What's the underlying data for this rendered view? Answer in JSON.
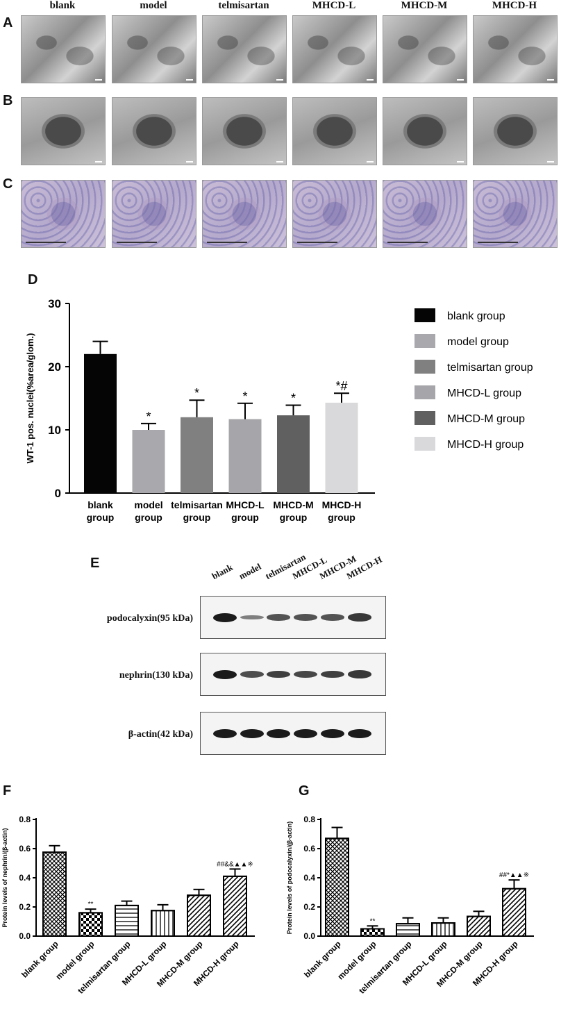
{
  "columns": [
    "blank",
    "model",
    "telmisartan",
    "MHCD-L",
    "MHCD-M",
    "MHCD-H"
  ],
  "panels": {
    "A": "A",
    "B": "B",
    "C": "C",
    "D": "D",
    "E": "E",
    "F": "F",
    "G": "G"
  },
  "chart_d": {
    "type": "bar",
    "ylabel": "WT-1 pos. nuclei(%area/glom.)",
    "ylim": [
      0,
      30
    ],
    "yticks": [
      0,
      10,
      20,
      30
    ],
    "categories": [
      [
        "blank",
        "group"
      ],
      [
        "model",
        "group"
      ],
      [
        "telmisartan",
        "group"
      ],
      [
        "MHCD-L",
        "group"
      ],
      [
        "MHCD-M",
        "group"
      ],
      [
        "MHCD-H",
        "group"
      ]
    ],
    "values": [
      22.0,
      10.0,
      12.0,
      11.7,
      12.3,
      14.3
    ],
    "errors": [
      2.0,
      1.0,
      2.7,
      2.5,
      1.6,
      1.5
    ],
    "annotations": [
      "",
      "*",
      "*",
      "*",
      "*",
      "*#"
    ],
    "colors": [
      "#050505",
      "#a9a9ad",
      "#808080",
      "#a6a6aa",
      "#606060",
      "#d9d9db"
    ],
    "legend": [
      "blank group",
      "model group",
      "telmisartan group",
      "MHCD-L group",
      "MHCD-M group",
      "MHCD-H group"
    ]
  },
  "blot": {
    "lanes": [
      "blank",
      "model",
      "telmisartan",
      "MHCD-L",
      "MHCD-M",
      "MHCD-H"
    ],
    "rows": [
      {
        "label": "podocalyxin(95 kDa)",
        "intensity": [
          1.0,
          0.3,
          0.6,
          0.6,
          0.6,
          0.8
        ]
      },
      {
        "label": "nephrin(130 kDa)",
        "intensity": [
          1.0,
          0.65,
          0.75,
          0.7,
          0.75,
          0.8
        ]
      },
      {
        "label": "β-actin(42 kDa)",
        "intensity": [
          1.0,
          1.0,
          1.0,
          1.0,
          1.0,
          1.0
        ]
      }
    ]
  },
  "chart_f": {
    "type": "bar",
    "ylabel": "Protein levels of nephrin/(β-actin)",
    "ylim": [
      0,
      0.8
    ],
    "yticks": [
      "0.0",
      "0.2",
      "0.4",
      "0.6",
      "0.8"
    ],
    "categories": [
      "blank group",
      "model group",
      "telmisartan group",
      "MHCD-L group",
      "MHCD-M group",
      "MHCD-H group"
    ],
    "values": [
      0.575,
      0.16,
      0.21,
      0.175,
      0.28,
      0.41
    ],
    "errors": [
      0.045,
      0.025,
      0.03,
      0.04,
      0.04,
      0.05
    ],
    "annotations": [
      "",
      "**",
      "",
      "",
      "",
      "##&&▲▲※"
    ],
    "patterns": [
      "cross",
      "check",
      "hlines",
      "vlines",
      "diag",
      "diag"
    ]
  },
  "chart_g": {
    "type": "bar",
    "ylabel": "Protein levels of podocalyxin/(β-actin)",
    "ylim": [
      0,
      0.8
    ],
    "yticks": [
      "0.0",
      "0.2",
      "0.4",
      "0.6",
      "0.8"
    ],
    "categories": [
      "blank group",
      "model group",
      "telmisartan group",
      "MHCD-L group",
      "MHCD-M group",
      "MHCD-H group"
    ],
    "values": [
      0.67,
      0.05,
      0.085,
      0.09,
      0.135,
      0.325
    ],
    "errors": [
      0.075,
      0.02,
      0.04,
      0.035,
      0.035,
      0.06
    ],
    "annotations": [
      "",
      "**",
      "",
      "",
      "",
      "##*▲▲※"
    ],
    "patterns": [
      "cross",
      "check",
      "hlines",
      "vlines",
      "diag",
      "diag"
    ]
  }
}
